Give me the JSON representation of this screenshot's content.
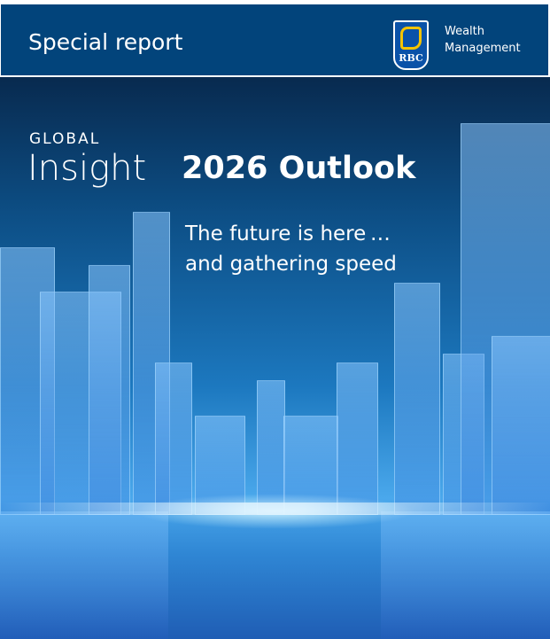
{
  "header": {
    "title": "Special report",
    "brand_mark": "RBC",
    "brand_line1": "Wealth",
    "brand_line2": "Management"
  },
  "cover": {
    "series_small": "GLOBAL",
    "series_large": "Insight",
    "report_title": "2026 Outlook",
    "tagline_line1": "The future is here …",
    "tagline_line2": "and gathering speed"
  },
  "colors": {
    "header_blue": "#02447b",
    "logo_gold": "#f5c400"
  }
}
